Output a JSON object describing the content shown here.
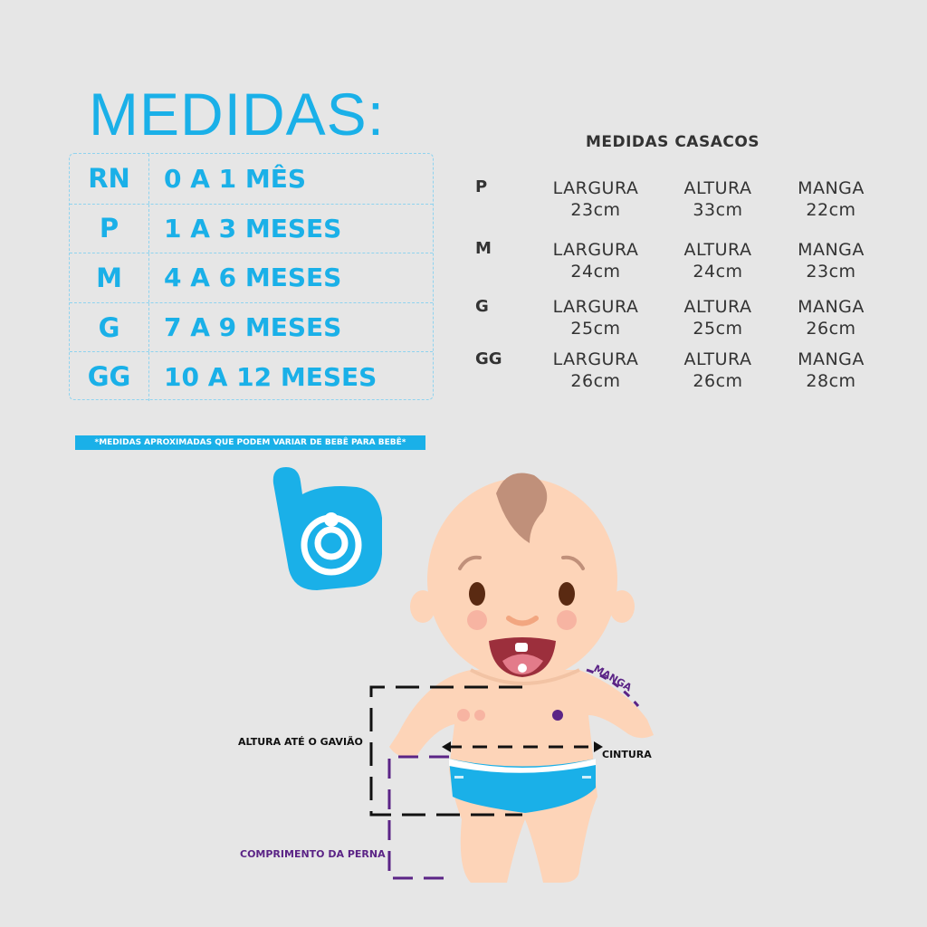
{
  "title": "MEDIDAS:",
  "sizes": [
    {
      "code": "RN",
      "age": "0 A 1 MÊS"
    },
    {
      "code": "P",
      "age": "1 A 3 MESES"
    },
    {
      "code": "M",
      "age": "4 A 6 MESES"
    },
    {
      "code": "G",
      "age": "7 A 9 MESES"
    },
    {
      "code": "GG",
      "age": "10 A 12 MESES"
    }
  ],
  "note": "*MEDIDAS APROXIMADAS QUE PODEM VARIAR DE BEBÊ PARA BEBÊ*",
  "coats": {
    "title": "MEDIDAS CASACOS",
    "headers": {
      "width": "LARGURA",
      "height": "ALTURA",
      "sleeve": "MANGA"
    },
    "rows": [
      {
        "size": "P",
        "width": "23cm",
        "height": "33cm",
        "sleeve": "22cm"
      },
      {
        "size": "M",
        "width": "24cm",
        "height": "24cm",
        "sleeve": "23cm"
      },
      {
        "size": "G",
        "width": "25cm",
        "height": "25cm",
        "sleeve": "26cm"
      },
      {
        "size": "GG",
        "width": "26cm",
        "height": "26cm",
        "sleeve": "28cm"
      }
    ]
  },
  "diagram": {
    "height_label": "ALTURA ATÉ O GAVIÃO",
    "waist_label": "CINTURA",
    "leg_label": "COMPRIMENTO DA PERNA",
    "sleeve_label": "MANGA"
  },
  "colors": {
    "accent": "#1ab0e8",
    "purple": "#5b2486",
    "text": "#333333",
    "background": "#e6e6e6"
  }
}
